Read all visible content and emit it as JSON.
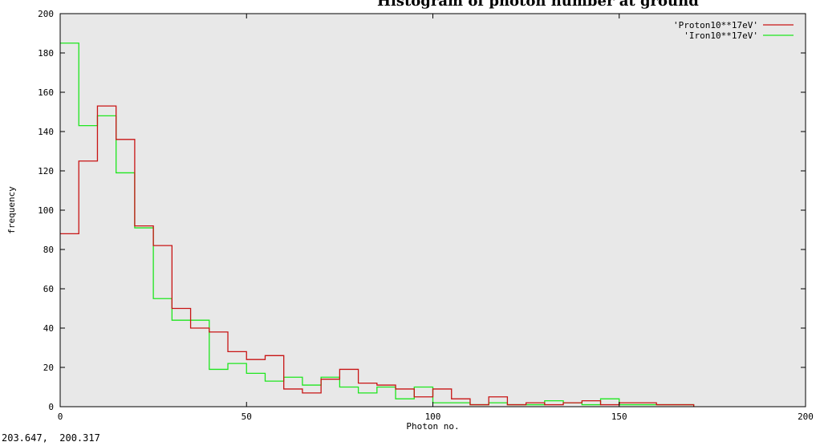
{
  "window": {
    "clipped_title": "Histogram of photon number at ground",
    "coord_readout": "203.647,  200.317"
  },
  "colors": {
    "background": "#ffffff",
    "plot_area": "#e8e8e8",
    "proton": "#c81414",
    "iron": "#1ee61e",
    "axis": "#000000"
  },
  "chart_data": {
    "type": "histogram",
    "xlabel": "Photon no.",
    "ylabel": "frequency",
    "xlim": [
      0,
      200
    ],
    "ylim": [
      0,
      200
    ],
    "xticks": [
      0,
      50,
      100,
      150,
      200
    ],
    "yticks": [
      0,
      20,
      40,
      60,
      80,
      100,
      120,
      140,
      160,
      180,
      200
    ],
    "bin_width": 5,
    "bin_edges_start": 0,
    "legend_position": "top-right",
    "grid": false,
    "series": [
      {
        "name": "'Proton10**17eV'",
        "color": "#c81414",
        "values": [
          88,
          125,
          153,
          136,
          92,
          82,
          50,
          40,
          38,
          28,
          24,
          26,
          9,
          7,
          14,
          19,
          12,
          11,
          9,
          5,
          9,
          4,
          1,
          5,
          1,
          2,
          1,
          2,
          3,
          1,
          2,
          2,
          1,
          1
        ]
      },
      {
        "name": "'Iron10**17eV'",
        "color": "#1ee61e",
        "values": [
          185,
          143,
          148,
          119,
          91,
          55,
          44,
          44,
          19,
          22,
          17,
          13,
          15,
          11,
          15,
          10,
          7,
          10,
          4,
          10,
          2,
          2,
          1,
          2,
          1,
          1,
          3,
          2,
          1,
          4,
          1,
          1,
          1,
          1
        ]
      }
    ]
  }
}
